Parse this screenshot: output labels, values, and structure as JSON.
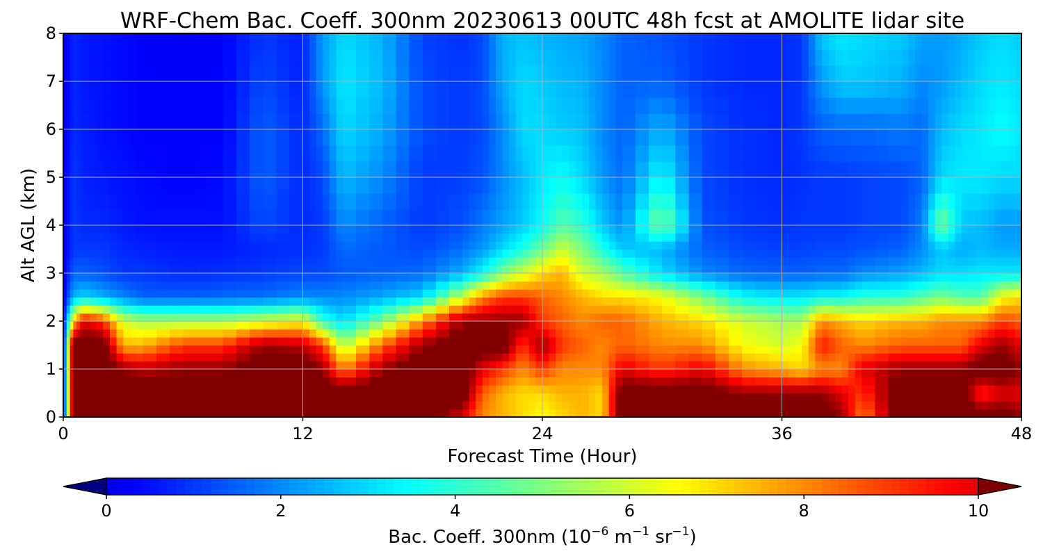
{
  "chart_data": {
    "type": "heatmap",
    "title": "WRF-Chem Bac. Coeff. 300nm  20230613 00UTC 48h fcst at AMOLITE lidar site",
    "xlabel": "Forecast Time (Hour)",
    "ylabel": "Alt AGL (km)",
    "xlim": [
      0,
      48
    ],
    "ylim": [
      0,
      8
    ],
    "x_ticks": [
      0,
      12,
      24,
      36,
      48
    ],
    "y_ticks": [
      0,
      1,
      2,
      3,
      4,
      5,
      6,
      7,
      8
    ],
    "grid": true,
    "colormap": "jet",
    "colorbar": {
      "orientation": "horizontal",
      "placement": "bottom",
      "range": [
        0,
        10
      ],
      "ticks": [
        0,
        2,
        4,
        6,
        8,
        10
      ],
      "extend": "both",
      "label_main": "Bac. Coeff. 300nm  (10",
      "label_exp1": "−6",
      "label_mid": " m",
      "label_exp2": "−1",
      "label_mid2": " sr",
      "label_exp3": "−1",
      "label_end": ")"
    },
    "hours": [
      0,
      0.5,
      1,
      2,
      3,
      4,
      6,
      8,
      10,
      12,
      13,
      14,
      16,
      18,
      20,
      21,
      22,
      23,
      24,
      25,
      26,
      27,
      28,
      30,
      32,
      34,
      36,
      37,
      38,
      39,
      40,
      42,
      43,
      44,
      45,
      46,
      47,
      48
    ],
    "altitudes_km": [
      0,
      0.5,
      1.0,
      1.5,
      2.0,
      2.5,
      3.0,
      3.5,
      4.0,
      5.0,
      6.0,
      7.0,
      8.0
    ],
    "values": [
      [
        0,
        0,
        0,
        0,
        0,
        0,
        0,
        0,
        0,
        0,
        0,
        0,
        0
      ],
      [
        12,
        12,
        12,
        12,
        7,
        2.5,
        1.5,
        1,
        1,
        1,
        0.8,
        0.8,
        0.8
      ],
      [
        12,
        12,
        12,
        12,
        10,
        3,
        1.5,
        1,
        0.8,
        0.7,
        0.7,
        0.6,
        0.6
      ],
      [
        12,
        12,
        12,
        12,
        9,
        2.5,
        1.3,
        1,
        0.8,
        0.6,
        0.5,
        0.5,
        0.5
      ],
      [
        12,
        12,
        11,
        7.5,
        6,
        2,
        1,
        0.8,
        0.6,
        0.5,
        0.4,
        0.4,
        0.4
      ],
      [
        12,
        12,
        10.5,
        7.5,
        5.5,
        1.5,
        1,
        0.7,
        0.5,
        0.4,
        0.3,
        0.3,
        0.3
      ],
      [
        12,
        12,
        11,
        9,
        5.5,
        1.5,
        0.8,
        0.6,
        0.5,
        0.3,
        0.3,
        0.3,
        0.2
      ],
      [
        12,
        12,
        11,
        9,
        5.5,
        1.6,
        0.9,
        0.6,
        0.5,
        0.4,
        0.3,
        0.3,
        0.3
      ],
      [
        12,
        12,
        12,
        11,
        6,
        1.7,
        1,
        0.8,
        1.2,
        1.5,
        1.5,
        1.2,
        1
      ],
      [
        12,
        12,
        12,
        10.5,
        6.5,
        2,
        1.2,
        0.9,
        0.8,
        0.8,
        0.8,
        0.7,
        0.7
      ],
      [
        12,
        12,
        11,
        9,
        4,
        2,
        1.2,
        1,
        1,
        1.2,
        1.6,
        2.2,
        2.2
      ],
      [
        12,
        12,
        8,
        5.5,
        3,
        2,
        1.4,
        1.6,
        2,
        2.6,
        3,
        3.2,
        3
      ],
      [
        12,
        12,
        11,
        8.5,
        5,
        2.4,
        1.5,
        1.4,
        1.5,
        2,
        2.4,
        2.6,
        2.5
      ],
      [
        12,
        12,
        12,
        11,
        8,
        3,
        1.6,
        1.2,
        1,
        1,
        1.2,
        1.2,
        1.1
      ],
      [
        10,
        12,
        12,
        12,
        11,
        6,
        2.5,
        1.7,
        1.3,
        1.1,
        1,
        1,
        0.9
      ],
      [
        8,
        8.5,
        10,
        12,
        11,
        8,
        3.5,
        2.2,
        1.8,
        1.3,
        1.2,
        1.2,
        1.2
      ],
      [
        7.5,
        7.5,
        9,
        12,
        11,
        9,
        5,
        3,
        2.3,
        2,
        2,
        2.4,
        2.5
      ],
      [
        7,
        7,
        8,
        9,
        11,
        9,
        6,
        3.8,
        2.8,
        2.6,
        3,
        3,
        2.7
      ],
      [
        6.5,
        7,
        9,
        11,
        9,
        8.5,
        7,
        4.8,
        3.5,
        3.2,
        3,
        2.8,
        2.5
      ],
      [
        7,
        7.5,
        8,
        9,
        8.5,
        8,
        7.5,
        6,
        4.5,
        3.5,
        2.8,
        2.6,
        2.4
      ],
      [
        7.5,
        7.5,
        8,
        8.5,
        8,
        7.5,
        6,
        5,
        4,
        3,
        2.7,
        2.5,
        2.3
      ],
      [
        7,
        7,
        8,
        8,
        8.5,
        7,
        5.5,
        3.8,
        2.8,
        2.2,
        2,
        2,
        2
      ],
      [
        12,
        12,
        10,
        8.5,
        8.5,
        7,
        4.5,
        2.8,
        2,
        1.6,
        1.5,
        1.5,
        1.5
      ],
      [
        12,
        12,
        9,
        8,
        7.5,
        6.5,
        3,
        2.5,
        5,
        3.5,
        2.5,
        1.5,
        1.3
      ],
      [
        12,
        12,
        10,
        8,
        7,
        5,
        2,
        1.5,
        1.3,
        1.2,
        1.2,
        1,
        1
      ],
      [
        12,
        11,
        8,
        6.5,
        6,
        3.5,
        1.6,
        1.2,
        1,
        0.9,
        0.9,
        0.8,
        0.8
      ],
      [
        12,
        11,
        7.5,
        6,
        5.5,
        3.2,
        1.5,
        1.1,
        0.9,
        0.8,
        0.8,
        0.8,
        0.8
      ],
      [
        12,
        11,
        7,
        6.5,
        5.5,
        3.2,
        1.5,
        1.1,
        1,
        0.9,
        1,
        1,
        1
      ],
      [
        12,
        11,
        8,
        9.5,
        8,
        3.5,
        1.6,
        1.2,
        1,
        1,
        1.5,
        2.2,
        2.8
      ],
      [
        11,
        10,
        8,
        8.5,
        7.5,
        3.5,
        1.6,
        1.2,
        1,
        1,
        1.6,
        2.8,
        3.2
      ],
      [
        8,
        9,
        10,
        8,
        7,
        4,
        2,
        1.3,
        1.1,
        1.1,
        1.6,
        2.8,
        3
      ],
      [
        12,
        12,
        11,
        8.5,
        7.5,
        4,
        2.3,
        1.5,
        1.2,
        1.2,
        1.8,
        2.5,
        2.8
      ],
      [
        12,
        12,
        11,
        8.5,
        7.5,
        4.5,
        2.6,
        2,
        1.8,
        1.5,
        1.6,
        2,
        2.3
      ],
      [
        12,
        12,
        11,
        8.5,
        8,
        5,
        3,
        2.8,
        5,
        3,
        2.6,
        2.2,
        2.2
      ],
      [
        12,
        12,
        11,
        8.5,
        8,
        4.5,
        3,
        2.4,
        2.8,
        3.2,
        3,
        2.6,
        2.4
      ],
      [
        12,
        9,
        12,
        10,
        8,
        4.5,
        3.2,
        2.6,
        2.6,
        3.2,
        3.2,
        3,
        2.8
      ],
      [
        12,
        10,
        12,
        11,
        9,
        6.5,
        3.2,
        2.4,
        2.2,
        3,
        3.5,
        3.2,
        3
      ],
      [
        11,
        10,
        11,
        10,
        8.5,
        7,
        3.2,
        2.4,
        2.2,
        3,
        3.2,
        3,
        2.8
      ]
    ]
  }
}
